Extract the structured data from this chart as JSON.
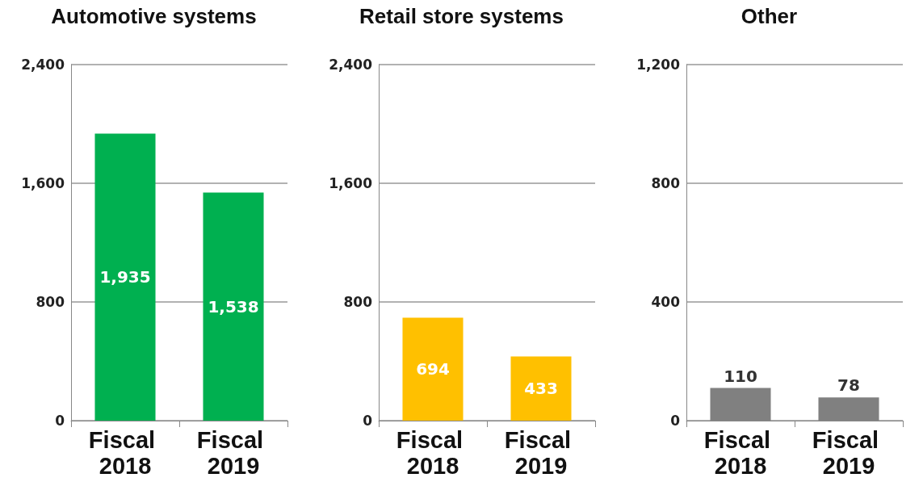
{
  "chart_data": [
    {
      "type": "bar",
      "title": "Automotive systems",
      "categories": [
        "Fiscal 2018",
        "Fiscal 2019"
      ],
      "values": [
        1935,
        1538
      ],
      "color": "#00b050",
      "ylim": [
        0,
        2400
      ],
      "yticks": [
        0,
        800,
        {
          "value": 1600,
          "label": "1,600"
        },
        {
          "value": 2400,
          "label": "2,400"
        }
      ],
      "grid": "y",
      "data_labels": true,
      "value_labels": [
        "1,935",
        "1,538"
      ]
    },
    {
      "type": "bar",
      "title": "Retail store systems",
      "categories": [
        "Fiscal 2018",
        "Fiscal 2019"
      ],
      "values": [
        694,
        433
      ],
      "color": "#ffc000",
      "ylim": [
        0,
        2400
      ],
      "yticks": [
        0,
        800,
        {
          "value": 1600,
          "label": "1,600"
        },
        {
          "value": 2400,
          "label": "2,400"
        }
      ],
      "grid": "y",
      "data_labels": true
    },
    {
      "type": "bar",
      "title": "Other",
      "categories": [
        "Fiscal 2018",
        "Fiscal 2019"
      ],
      "values": [
        110,
        78
      ],
      "color": "#808080",
      "ylim": [
        0,
        1200
      ],
      "yticks": [
        0,
        400,
        800,
        {
          "value": 1200,
          "label": "1,200"
        }
      ],
      "grid": "y",
      "data_labels": true
    }
  ]
}
